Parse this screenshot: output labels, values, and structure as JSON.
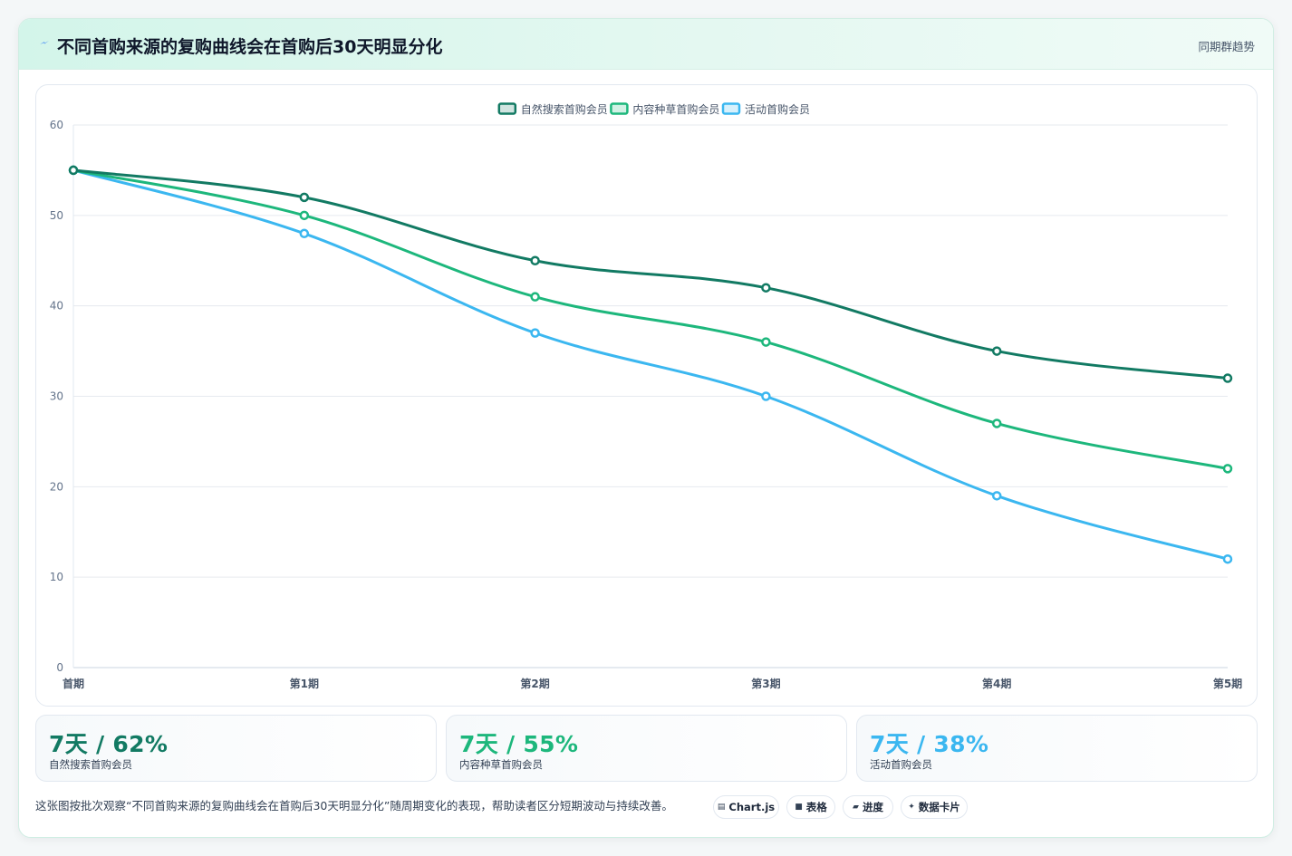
{
  "header": {
    "title": "不同首购来源的复购曲线会在首购后30天明显分化",
    "tag": "同期群趋势",
    "icon": "lightning-icon"
  },
  "chart_data": {
    "type": "line",
    "categories": [
      "首期",
      "第1期",
      "第2期",
      "第3期",
      "第4期",
      "第5期"
    ],
    "series": [
      {
        "name": "自然搜索首购会员",
        "color": "#127a63",
        "values": [
          55,
          52,
          45,
          42,
          35,
          32
        ]
      },
      {
        "name": "内容种草首购会员",
        "color": "#1db77c",
        "values": [
          55,
          50,
          41,
          36,
          27,
          22
        ]
      },
      {
        "name": "活动首购会员",
        "color": "#3bb7f0",
        "values": [
          55,
          48,
          37,
          30,
          19,
          12
        ]
      }
    ],
    "ylim": [
      0,
      60
    ],
    "yticks": [
      0,
      10,
      20,
      30,
      40,
      50,
      60
    ],
    "grid": true,
    "legend_position": "top-center",
    "smooth": true
  },
  "stats": [
    {
      "value": "7天 / 62%",
      "label": "自然搜索首购会员",
      "color": "#127a63"
    },
    {
      "value": "7天 / 55%",
      "label": "内容种草首购会员",
      "color": "#1db77c"
    },
    {
      "value": "7天 / 38%",
      "label": "活动首购会员",
      "color": "#3bb7f0"
    }
  ],
  "footer": {
    "note": "这张图按批次观察“不同首购来源的复购曲线会在首购后30天明显分化”随周期变化的表现，帮助读者区分短期波动与持续改善。",
    "pills": [
      {
        "label": "Chart.js",
        "glyph": "▤",
        "icon": "chart-icon"
      },
      {
        "label": "表格",
        "glyph": "■",
        "icon": "table-icon"
      },
      {
        "label": "进度",
        "glyph": "▰",
        "icon": "progress-icon"
      },
      {
        "label": "数据卡片",
        "glyph": "✦",
        "icon": "sparkle-icon"
      }
    ]
  }
}
